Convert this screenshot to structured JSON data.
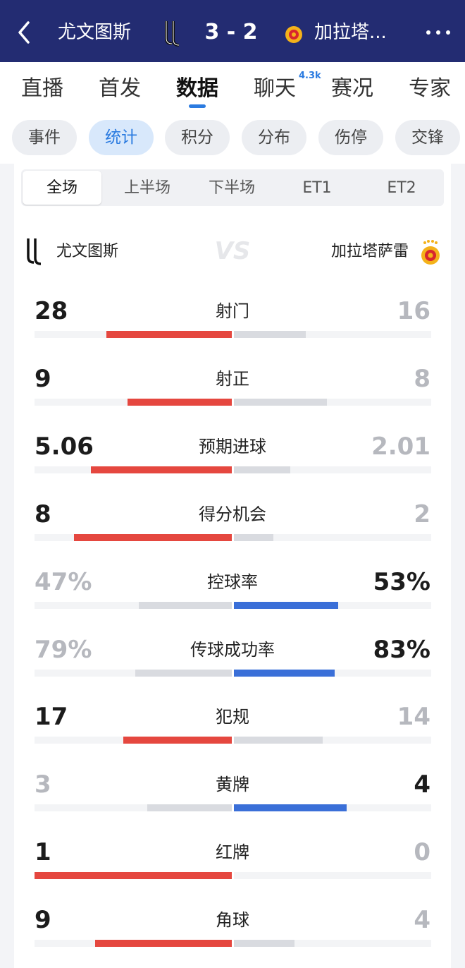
{
  "header": {
    "home": "尤文图斯",
    "score": "3 - 2",
    "away": "加拉塔..."
  },
  "tabs": [
    "直播",
    "首发",
    "数据",
    "聊天",
    "赛况",
    "专家"
  ],
  "chat_badge": "4.3k",
  "filters": [
    "事件",
    "统计",
    "积分",
    "分布",
    "伤停",
    "交锋"
  ],
  "periods": [
    "全场",
    "上半场",
    "下半场",
    "ET1",
    "ET2"
  ],
  "teams": {
    "home": "尤文图斯",
    "vs": "VS",
    "away": "加拉塔萨雷"
  },
  "stats": [
    {
      "name": "射门",
      "home": 28,
      "away": 16
    },
    {
      "name": "射正",
      "home": 9,
      "away": 8
    },
    {
      "name": "预期进球",
      "home": 5.06,
      "away": 2.01
    },
    {
      "name": "得分机会",
      "home": 8,
      "away": 2
    },
    {
      "name": "控球率",
      "home": {
        "value": 47,
        "label": "47%"
      },
      "away": {
        "value": 53,
        "label": "53%"
      }
    },
    {
      "name": "传球成功率",
      "home": {
        "value": 79,
        "label": "79%"
      },
      "away": {
        "value": 83,
        "label": "83%"
      }
    },
    {
      "name": "犯规",
      "home": 17,
      "away": 14
    },
    {
      "name": "黄牌",
      "home": 3,
      "away": 4
    },
    {
      "name": "红牌",
      "home": 1,
      "away": 0
    },
    {
      "name": "角球",
      "home": 9,
      "away": 4
    }
  ]
}
